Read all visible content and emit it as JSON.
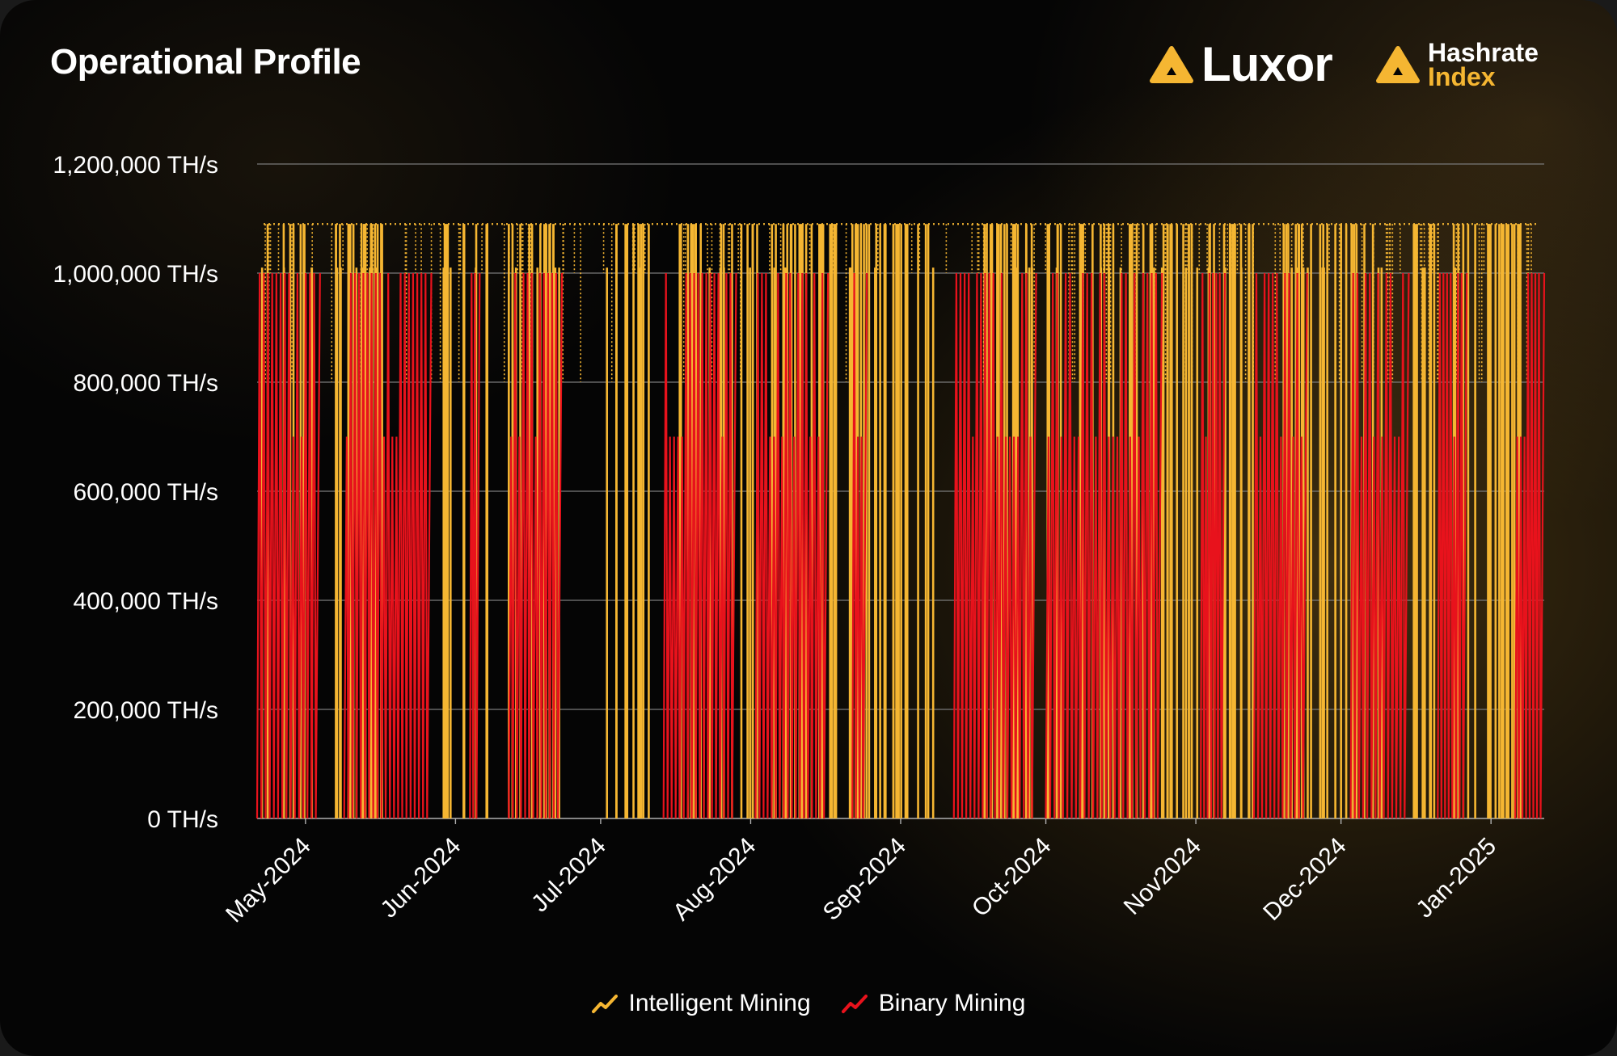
{
  "header": {
    "title": "Operational Profile"
  },
  "brands": [
    {
      "name": "Luxor",
      "icon": "luxor-logo-icon"
    },
    {
      "name_line1": "Hashrate",
      "name_line2": "Index",
      "icon": "hashrate-index-logo-icon"
    }
  ],
  "colors": {
    "accent": "#f5b632",
    "intelligent": "#f5b632",
    "binary": "#e8121c",
    "grid": "#8a8a8a",
    "background": "#050505"
  },
  "legend": {
    "intelligent_label": "Intelligent Mining",
    "binary_label": "Binary Mining",
    "intelligent_icon": "trend-line-icon",
    "binary_icon": "trend-line-icon"
  },
  "chart_data": {
    "type": "line",
    "title": "Operational Profile",
    "xlabel": "",
    "ylabel": "",
    "unit": "TH/s",
    "grid": true,
    "legend_position": "bottom",
    "xlim": [
      "2024-04-21",
      "2025-01-12"
    ],
    "ylim": [
      0,
      1200000
    ],
    "y_ticks": [
      "0 TH/s",
      "200,000 TH/s",
      "400,000 TH/s",
      "600,000 TH/s",
      "800,000 TH/s",
      "1,000,000 TH/s",
      "1,200,000 TH/s"
    ],
    "y_tick_values": [
      0,
      200000,
      400000,
      600000,
      800000,
      1000000,
      1200000
    ],
    "x_ticks": [
      {
        "label": "May-2024",
        "date": "2024-05-01"
      },
      {
        "label": "Jun-2024",
        "date": "2024-06-01"
      },
      {
        "label": "Jul-2024",
        "date": "2024-07-01"
      },
      {
        "label": "Aug-2024",
        "date": "2024-08-01"
      },
      {
        "label": "Sep-2024",
        "date": "2024-09-01"
      },
      {
        "label": "Oct-2024",
        "date": "2024-10-01"
      },
      {
        "label": "Nov2024",
        "date": "2024-11-01"
      },
      {
        "label": "Dec-2024",
        "date": "2024-12-01"
      },
      {
        "label": "Jan-2025",
        "date": "2025-01-01"
      }
    ],
    "series": [
      {
        "name": "Intelligent Mining",
        "color": "#f5b632",
        "baseline_TH_s": 1090000,
        "curtailment_windows": [
          [
            "2024-04-22",
            "2024-05-18"
          ],
          [
            "2024-05-29",
            "2024-06-08"
          ],
          [
            "2024-06-12",
            "2024-06-24"
          ],
          [
            "2024-07-02",
            "2024-07-11"
          ],
          [
            "2024-07-15",
            "2024-09-08"
          ],
          [
            "2024-09-18",
            "2024-11-13"
          ],
          [
            "2024-11-19",
            "2024-12-10"
          ],
          [
            "2024-12-16",
            "2025-01-08"
          ]
        ]
      },
      {
        "name": "Binary Mining",
        "color": "#e8121c",
        "on_TH_s": 1000000,
        "off_TH_s": 0,
        "offline_windows": [
          [
            "2024-04-21",
            "2024-05-04"
          ],
          [
            "2024-05-09",
            "2024-05-27"
          ],
          [
            "2024-06-04",
            "2024-06-06"
          ],
          [
            "2024-06-12",
            "2024-06-23"
          ],
          [
            "2024-07-14",
            "2024-07-29"
          ],
          [
            "2024-08-02",
            "2024-08-17"
          ],
          [
            "2024-08-22",
            "2024-08-25"
          ],
          [
            "2024-09-12",
            "2024-09-29"
          ],
          [
            "2024-10-01",
            "2024-10-25"
          ],
          [
            "2024-11-02",
            "2024-11-07"
          ],
          [
            "2024-11-13",
            "2024-11-24"
          ],
          [
            "2024-12-03",
            "2024-12-15"
          ],
          [
            "2024-12-21",
            "2024-12-27"
          ],
          [
            "2025-01-06",
            "2025-01-12"
          ]
        ]
      }
    ]
  }
}
